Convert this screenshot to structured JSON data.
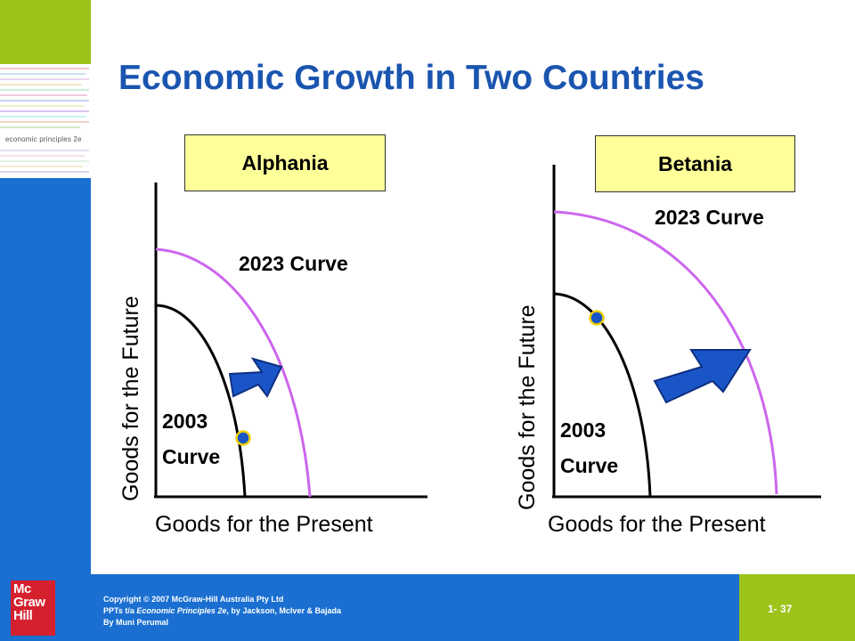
{
  "title": "Economic Growth in Two Countries",
  "panels": [
    {
      "country": "Alphania",
      "curve_new_label": "2023 Curve",
      "curve_old_label_line1": "2003",
      "curve_old_label_line2": "Curve",
      "y_axis_label": "Goods for the Future",
      "x_axis_label": "Goods for the Present"
    },
    {
      "country": "Betania",
      "curve_new_label": "2023 Curve",
      "curve_old_label_line1": "2003",
      "curve_old_label_line2": "Curve",
      "y_axis_label": "Goods for the Future",
      "x_axis_label": "Goods for the Present"
    }
  ],
  "sidebar": {
    "brand_text": "economic principles 2e"
  },
  "footer": {
    "logo_lines": [
      "Mc",
      "Graw",
      "Hill"
    ],
    "copyright_line1": "Copyright © 2007 McGraw-Hill Australia Pty Ltd",
    "copyright_line2_prefix": "PPTs t/a ",
    "copyright_line2_title": "Economic Principles 2e",
    "copyright_line2_suffix": ", by Jackson, McIver & Bajada",
    "copyright_line3": "By Muni Perumal",
    "page_number": "1- 37"
  },
  "colors": {
    "title": "#1a55b0",
    "new_curve": "#cc66ee",
    "old_curve": "#000000",
    "arrow": "#1a55c8",
    "point": "#1a55c8",
    "point_ring": "#f0d000",
    "country_box": "#ffff99",
    "accent_blue": "#1a6fd1",
    "accent_green": "#9cc31a"
  }
}
